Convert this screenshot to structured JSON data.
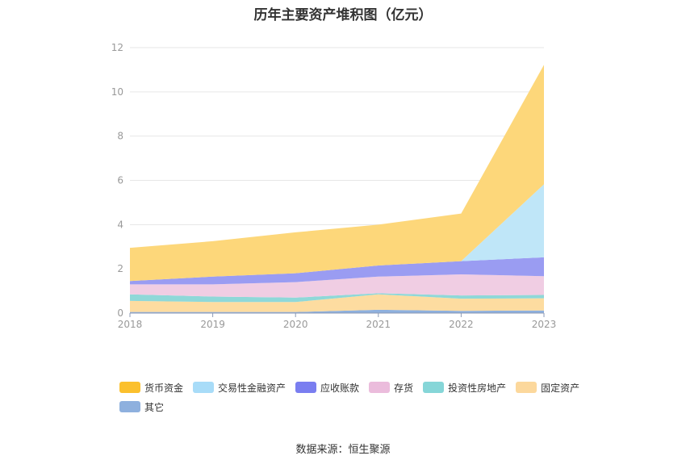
{
  "title": "历年主要资产堆积图（亿元）",
  "source": "数据来源：恒生聚源",
  "chart_data": {
    "type": "area",
    "stacked": true,
    "categories": [
      "2018",
      "2019",
      "2020",
      "2021",
      "2022",
      "2023"
    ],
    "ylim": [
      0,
      12
    ],
    "yticks": [
      0,
      2,
      4,
      6,
      8,
      10,
      12
    ],
    "series": [
      {
        "name": "其它",
        "color": "#8eb0de",
        "values": [
          0.05,
          0.05,
          0.05,
          0.15,
          0.1,
          0.12
        ]
      },
      {
        "name": "固定资产",
        "color": "#fddca0",
        "values": [
          0.5,
          0.45,
          0.45,
          0.7,
          0.55,
          0.55
        ]
      },
      {
        "name": "投资性房地产",
        "color": "#8fd8d8",
        "values": [
          0.3,
          0.25,
          0.2,
          0.05,
          0.15,
          0.15
        ]
      },
      {
        "name": "存货",
        "color": "#f0cde3",
        "values": [
          0.45,
          0.55,
          0.7,
          0.75,
          0.95,
          0.85
        ]
      },
      {
        "name": "应收账款",
        "color": "#9a9cf2",
        "values": [
          0.15,
          0.35,
          0.4,
          0.5,
          0.6,
          0.85
        ]
      },
      {
        "name": "交易性金融资产",
        "color": "#bfe6f8",
        "values": [
          0.0,
          0.0,
          0.0,
          0.0,
          0.0,
          3.3
        ]
      },
      {
        "name": "货币资金",
        "color": "#fdd77a",
        "values": [
          1.5,
          1.6,
          1.85,
          1.85,
          2.15,
          5.4
        ]
      }
    ]
  },
  "legend": [
    {
      "name": "货币资金",
      "color": "#fbc02d"
    },
    {
      "name": "交易性金融资产",
      "color": "#a8dcf8"
    },
    {
      "name": "应收账款",
      "color": "#7a7ef0"
    },
    {
      "name": "存货",
      "color": "#ebbcdc"
    },
    {
      "name": "投资性房地产",
      "color": "#86d6d8"
    },
    {
      "name": "固定资产",
      "color": "#fcd89c"
    },
    {
      "name": "其它",
      "color": "#8eb0de"
    }
  ]
}
